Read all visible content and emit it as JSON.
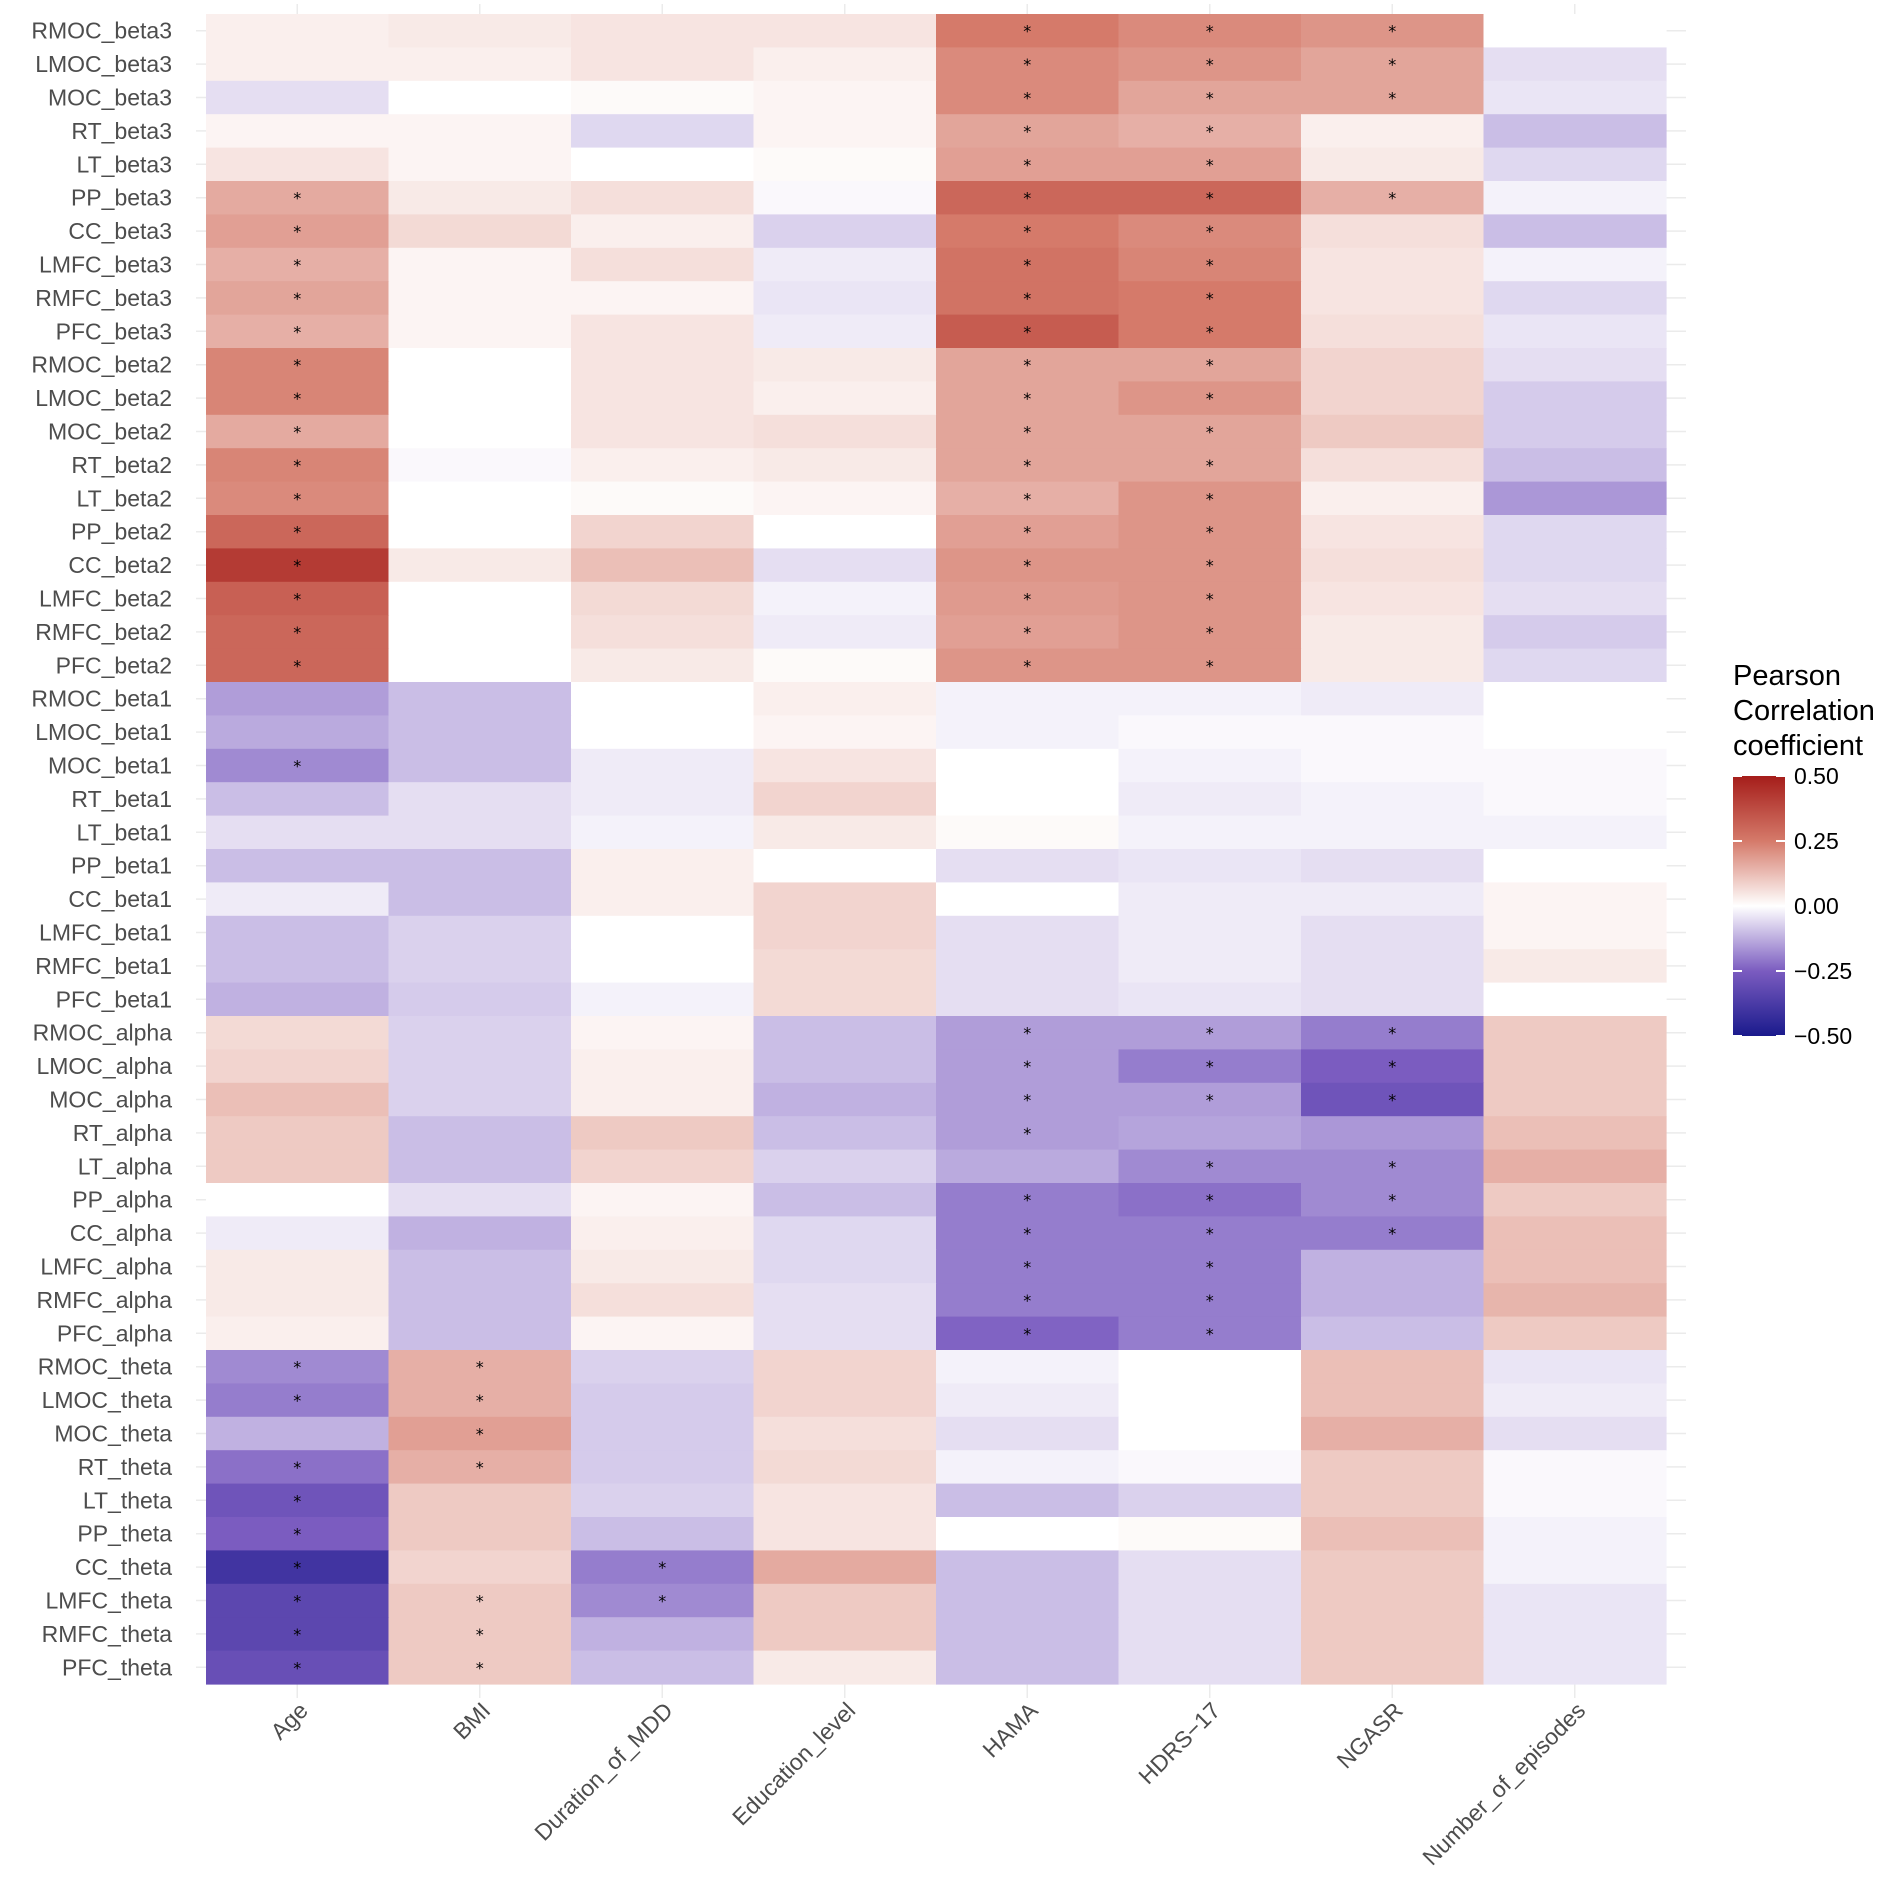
{
  "chart_data": {
    "type": "heatmap",
    "x_categories": [
      "Age",
      "BMI",
      "Duration_of_MDD",
      "Education_level",
      "HAMA",
      "HDRS−17",
      "NGASR",
      "Number_of_episodes"
    ],
    "y_categories": [
      "RMOC_beta3",
      "LMOC_beta3",
      "MOC_beta3",
      "RT_beta3",
      "LT_beta3",
      "PP_beta3",
      "CC_beta3",
      "LMFC_beta3",
      "RMFC_beta3",
      "PFC_beta3",
      "RMOC_beta2",
      "LMOC_beta2",
      "MOC_beta2",
      "RT_beta2",
      "LT_beta2",
      "PP_beta2",
      "CC_beta2",
      "LMFC_beta2",
      "RMFC_beta2",
      "PFC_beta2",
      "RMOC_beta1",
      "LMOC_beta1",
      "MOC_beta1",
      "RT_beta1",
      "LT_beta1",
      "PP_beta1",
      "CC_beta1",
      "LMFC_beta1",
      "RMFC_beta1",
      "PFC_beta1",
      "RMOC_alpha",
      "LMOC_alpha",
      "MOC_alpha",
      "RT_alpha",
      "LT_alpha",
      "PP_alpha",
      "CC_alpha",
      "LMFC_alpha",
      "RMFC_alpha",
      "PFC_alpha",
      "RMOC_theta",
      "LMOC_theta",
      "MOC_theta",
      "RT_theta",
      "LT_theta",
      "PP_theta",
      "CC_theta",
      "LMFC_theta",
      "RMFC_theta",
      "PFC_theta"
    ],
    "values": [
      [
        0.03,
        0.04,
        0.05,
        0.05,
        0.25,
        0.22,
        0.2,
        0.0
      ],
      [
        0.03,
        0.03,
        0.05,
        0.03,
        0.22,
        0.2,
        0.17,
        -0.05
      ],
      [
        -0.05,
        0.0,
        0.01,
        0.02,
        0.22,
        0.17,
        0.17,
        -0.04
      ],
      [
        0.02,
        0.02,
        -0.06,
        0.02,
        0.17,
        0.15,
        0.03,
        -0.1
      ],
      [
        0.05,
        0.02,
        0.0,
        0.01,
        0.18,
        0.18,
        0.04,
        -0.06
      ],
      [
        0.16,
        0.04,
        0.06,
        -0.01,
        0.3,
        0.3,
        0.15,
        -0.02
      ],
      [
        0.18,
        0.07,
        0.03,
        -0.07,
        0.25,
        0.22,
        0.06,
        -0.1
      ],
      [
        0.15,
        0.02,
        0.06,
        -0.03,
        0.27,
        0.23,
        0.05,
        -0.02
      ],
      [
        0.17,
        0.02,
        0.02,
        -0.04,
        0.27,
        0.25,
        0.05,
        -0.06
      ],
      [
        0.15,
        0.02,
        0.05,
        -0.03,
        0.33,
        0.25,
        0.06,
        -0.04
      ],
      [
        0.23,
        0.0,
        0.05,
        0.04,
        0.17,
        0.17,
        0.08,
        -0.05
      ],
      [
        0.23,
        0.0,
        0.05,
        0.03,
        0.17,
        0.2,
        0.08,
        -0.08
      ],
      [
        0.16,
        0.0,
        0.05,
        0.06,
        0.17,
        0.17,
        0.1,
        -0.08
      ],
      [
        0.23,
        -0.01,
        0.03,
        0.04,
        0.17,
        0.17,
        0.06,
        -0.1
      ],
      [
        0.22,
        0.0,
        0.01,
        0.02,
        0.15,
        0.2,
        0.03,
        -0.16
      ],
      [
        0.3,
        0.0,
        0.08,
        0.0,
        0.18,
        0.2,
        0.05,
        -0.06
      ],
      [
        0.42,
        0.04,
        0.12,
        -0.05,
        0.2,
        0.2,
        0.06,
        -0.06
      ],
      [
        0.32,
        0.0,
        0.07,
        -0.02,
        0.19,
        0.2,
        0.05,
        -0.05
      ],
      [
        0.3,
        0.0,
        0.06,
        -0.03,
        0.18,
        0.2,
        0.04,
        -0.08
      ],
      [
        0.3,
        0.0,
        0.04,
        0.01,
        0.2,
        0.2,
        0.04,
        -0.06
      ],
      [
        -0.15,
        -0.1,
        0.0,
        0.03,
        -0.02,
        -0.02,
        -0.03,
        0.0
      ],
      [
        -0.13,
        -0.1,
        0.0,
        0.02,
        -0.02,
        -0.01,
        -0.01,
        0.0
      ],
      [
        -0.18,
        -0.1,
        -0.03,
        0.05,
        0.0,
        -0.02,
        -0.01,
        -0.01
      ],
      [
        -0.1,
        -0.05,
        -0.03,
        0.08,
        0.0,
        -0.03,
        -0.02,
        -0.01
      ],
      [
        -0.05,
        -0.05,
        -0.02,
        0.04,
        0.01,
        -0.02,
        -0.02,
        -0.02
      ],
      [
        -0.1,
        -0.1,
        0.03,
        0.0,
        -0.05,
        -0.04,
        -0.05,
        0.0
      ],
      [
        -0.03,
        -0.1,
        0.03,
        0.08,
        0.0,
        -0.03,
        -0.03,
        0.02
      ],
      [
        -0.1,
        -0.07,
        0.0,
        0.08,
        -0.05,
        -0.03,
        -0.05,
        0.02
      ],
      [
        -0.1,
        -0.07,
        0.0,
        0.07,
        -0.05,
        -0.03,
        -0.05,
        0.04
      ],
      [
        -0.12,
        -0.08,
        -0.02,
        0.07,
        -0.05,
        -0.04,
        -0.05,
        0.0
      ],
      [
        0.07,
        -0.07,
        0.02,
        -0.1,
        -0.15,
        -0.15,
        -0.2,
        0.1
      ],
      [
        0.08,
        -0.07,
        0.03,
        -0.1,
        -0.15,
        -0.2,
        -0.25,
        0.1
      ],
      [
        0.12,
        -0.07,
        0.03,
        -0.12,
        -0.15,
        -0.15,
        -0.28,
        0.1
      ],
      [
        0.1,
        -0.1,
        0.1,
        -0.1,
        -0.15,
        -0.14,
        -0.16,
        0.12
      ],
      [
        0.1,
        -0.1,
        0.08,
        -0.07,
        -0.13,
        -0.18,
        -0.18,
        0.15
      ],
      [
        0.0,
        -0.05,
        0.02,
        -0.1,
        -0.2,
        -0.22,
        -0.18,
        0.1
      ],
      [
        -0.03,
        -0.12,
        0.03,
        -0.06,
        -0.2,
        -0.2,
        -0.2,
        0.12
      ],
      [
        0.04,
        -0.1,
        0.04,
        -0.06,
        -0.2,
        -0.2,
        -0.12,
        0.12
      ],
      [
        0.04,
        -0.1,
        0.06,
        -0.05,
        -0.2,
        -0.2,
        -0.12,
        0.14
      ],
      [
        0.03,
        -0.1,
        0.02,
        -0.05,
        -0.24,
        -0.2,
        -0.1,
        0.1
      ],
      [
        -0.18,
        0.15,
        -0.07,
        0.08,
        -0.02,
        0.0,
        0.12,
        -0.04
      ],
      [
        -0.2,
        0.15,
        -0.08,
        0.08,
        -0.03,
        0.0,
        0.12,
        -0.03
      ],
      [
        -0.12,
        0.18,
        -0.08,
        0.06,
        -0.05,
        0.0,
        0.15,
        -0.05
      ],
      [
        -0.22,
        0.15,
        -0.08,
        0.07,
        -0.02,
        -0.01,
        0.1,
        -0.01
      ],
      [
        -0.28,
        0.1,
        -0.07,
        0.05,
        -0.1,
        -0.07,
        0.1,
        -0.01
      ],
      [
        -0.25,
        0.1,
        -0.1,
        0.05,
        0.0,
        0.01,
        0.12,
        -0.02
      ],
      [
        -0.4,
        0.08,
        -0.2,
        0.16,
        -0.1,
        -0.05,
        0.1,
        -0.02
      ],
      [
        -0.33,
        0.1,
        -0.18,
        0.1,
        -0.1,
        -0.05,
        0.1,
        -0.04
      ],
      [
        -0.33,
        0.1,
        -0.12,
        0.1,
        -0.1,
        -0.05,
        0.1,
        -0.04
      ],
      [
        -0.3,
        0.1,
        -0.1,
        0.04,
        -0.1,
        -0.05,
        0.1,
        -0.04
      ]
    ],
    "significant": [
      [
        false,
        false,
        false,
        false,
        true,
        true,
        true,
        false
      ],
      [
        false,
        false,
        false,
        false,
        true,
        true,
        true,
        false
      ],
      [
        false,
        false,
        false,
        false,
        true,
        true,
        true,
        false
      ],
      [
        false,
        false,
        false,
        false,
        true,
        true,
        false,
        false
      ],
      [
        false,
        false,
        false,
        false,
        true,
        true,
        false,
        false
      ],
      [
        true,
        false,
        false,
        false,
        true,
        true,
        true,
        false
      ],
      [
        true,
        false,
        false,
        false,
        true,
        true,
        false,
        false
      ],
      [
        true,
        false,
        false,
        false,
        true,
        true,
        false,
        false
      ],
      [
        true,
        false,
        false,
        false,
        true,
        true,
        false,
        false
      ],
      [
        true,
        false,
        false,
        false,
        true,
        true,
        false,
        false
      ],
      [
        true,
        false,
        false,
        false,
        true,
        true,
        false,
        false
      ],
      [
        true,
        false,
        false,
        false,
        true,
        true,
        false,
        false
      ],
      [
        true,
        false,
        false,
        false,
        true,
        true,
        false,
        false
      ],
      [
        true,
        false,
        false,
        false,
        true,
        true,
        false,
        false
      ],
      [
        true,
        false,
        false,
        false,
        true,
        true,
        false,
        false
      ],
      [
        true,
        false,
        false,
        false,
        true,
        true,
        false,
        false
      ],
      [
        true,
        false,
        false,
        false,
        true,
        true,
        false,
        false
      ],
      [
        true,
        false,
        false,
        false,
        true,
        true,
        false,
        false
      ],
      [
        true,
        false,
        false,
        false,
        true,
        true,
        false,
        false
      ],
      [
        true,
        false,
        false,
        false,
        true,
        true,
        false,
        false
      ],
      [
        false,
        false,
        false,
        false,
        false,
        false,
        false,
        false
      ],
      [
        false,
        false,
        false,
        false,
        false,
        false,
        false,
        false
      ],
      [
        true,
        false,
        false,
        false,
        false,
        false,
        false,
        false
      ],
      [
        false,
        false,
        false,
        false,
        false,
        false,
        false,
        false
      ],
      [
        false,
        false,
        false,
        false,
        false,
        false,
        false,
        false
      ],
      [
        false,
        false,
        false,
        false,
        false,
        false,
        false,
        false
      ],
      [
        false,
        false,
        false,
        false,
        false,
        false,
        false,
        false
      ],
      [
        false,
        false,
        false,
        false,
        false,
        false,
        false,
        false
      ],
      [
        false,
        false,
        false,
        false,
        false,
        false,
        false,
        false
      ],
      [
        false,
        false,
        false,
        false,
        false,
        false,
        false,
        false
      ],
      [
        false,
        false,
        false,
        false,
        true,
        true,
        true,
        false
      ],
      [
        false,
        false,
        false,
        false,
        true,
        true,
        true,
        false
      ],
      [
        false,
        false,
        false,
        false,
        true,
        true,
        true,
        false
      ],
      [
        false,
        false,
        false,
        false,
        true,
        false,
        false,
        false
      ],
      [
        false,
        false,
        false,
        false,
        false,
        true,
        true,
        false
      ],
      [
        false,
        false,
        false,
        false,
        true,
        true,
        true,
        false
      ],
      [
        false,
        false,
        false,
        false,
        true,
        true,
        true,
        false
      ],
      [
        false,
        false,
        false,
        false,
        true,
        true,
        false,
        false
      ],
      [
        false,
        false,
        false,
        false,
        true,
        true,
        false,
        false
      ],
      [
        false,
        false,
        false,
        false,
        true,
        true,
        false,
        false
      ],
      [
        true,
        true,
        false,
        false,
        false,
        false,
        false,
        false
      ],
      [
        true,
        true,
        false,
        false,
        false,
        false,
        false,
        false
      ],
      [
        false,
        true,
        false,
        false,
        false,
        false,
        false,
        false
      ],
      [
        true,
        true,
        false,
        false,
        false,
        false,
        false,
        false
      ],
      [
        true,
        false,
        false,
        false,
        false,
        false,
        false,
        false
      ],
      [
        true,
        false,
        false,
        false,
        false,
        false,
        false,
        false
      ],
      [
        true,
        false,
        true,
        false,
        false,
        false,
        false,
        false
      ],
      [
        true,
        true,
        true,
        false,
        false,
        false,
        false,
        false
      ],
      [
        true,
        true,
        false,
        false,
        false,
        false,
        false,
        false
      ],
      [
        true,
        true,
        false,
        false,
        false,
        false,
        false,
        false
      ]
    ],
    "significance_marker": "*",
    "colorscale": {
      "low": "#1a1a8c",
      "mid_low": "#7b5cc0",
      "mid": "#ffffff",
      "mid_high": "#d57a6a",
      "high": "#a51d1a",
      "range": [
        -0.5,
        0.5
      ]
    },
    "legend": {
      "title_lines": [
        "Pearson",
        "Correlation",
        "coefficient"
      ],
      "ticks": [
        0.5,
        0.25,
        0.0,
        -0.25,
        -0.5
      ],
      "tick_labels": [
        "0.50",
        "0.25",
        "0.00",
        "−0.25",
        "−0.50"
      ],
      "position": "right"
    },
    "xlabel": "",
    "ylabel": ""
  }
}
